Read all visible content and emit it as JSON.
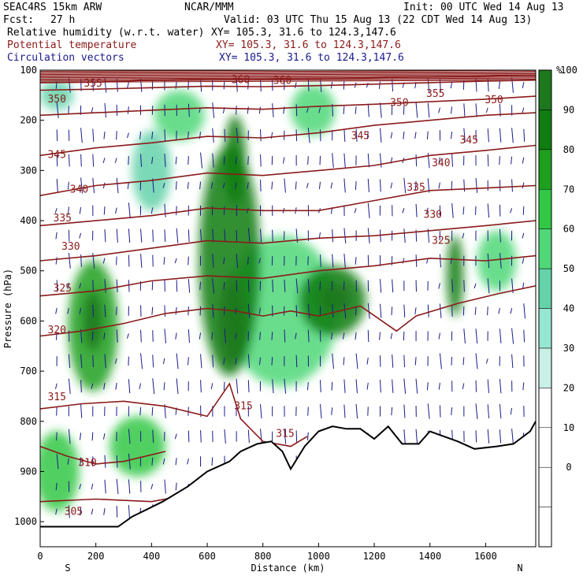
{
  "header": {
    "model": "SEAC4RS 15km ARW",
    "center": "NCAR/MMM",
    "init": "Init: 00 UTC Wed 14 Aug 13",
    "fcst_label": "Fcst:",
    "fcst_value": "27 h",
    "valid": "Valid: 03 UTC Thu 15 Aug 13 (22 CDT Wed 14 Aug 13)",
    "field1": "Relative humidity (w.r.t. water)",
    "field1_xy": "XY= 105.3, 31.6 to 124.3,147.6",
    "field2": "Potential temperature",
    "field2_xy": "XY= 105.3, 31.6 to 124.3,147.6",
    "field3": "Circulation vectors",
    "field3_xy": "XY= 105.3, 31.6 to 124.3,147.6",
    "colors": {
      "field1": "#000000",
      "field2": "#8b1a1a",
      "field3": "#1a1a8b"
    }
  },
  "chart_data": {
    "type": "heatmap",
    "title": "",
    "xlabel": "Distance (km)",
    "ylabel": "Pressure (hPa)",
    "xlim": [
      0,
      1780
    ],
    "ylim": [
      1050,
      100
    ],
    "x_ticks": [
      0,
      200,
      400,
      600,
      800,
      1000,
      1200,
      1400,
      1600
    ],
    "y_ticks": [
      100,
      200,
      300,
      400,
      500,
      600,
      700,
      800,
      900,
      1000
    ],
    "x_end_labels": {
      "left": "S",
      "right": "N"
    },
    "colorbar": {
      "unit": "%",
      "ticks": [
        0,
        10,
        20,
        30,
        40,
        50,
        60,
        70,
        80,
        90,
        100
      ],
      "colors": [
        "#ffffff",
        "#ffffff",
        "#ffffff",
        "#ffffff",
        "#c8f0e6",
        "#96e6d2",
        "#64d2aa",
        "#50d778",
        "#32c846",
        "#1ea01e",
        "#0f7d0f",
        "#1e781e"
      ]
    },
    "rh_blobs": [
      {
        "x": 190,
        "p": 610,
        "rx": 90,
        "rp": 130,
        "v": 70
      },
      {
        "x": 190,
        "p": 600,
        "rx": 35,
        "rp": 60,
        "v": 90
      },
      {
        "x": 680,
        "p": 480,
        "rx": 110,
        "rp": 230,
        "v": 80
      },
      {
        "x": 690,
        "p": 600,
        "rx": 50,
        "rp": 90,
        "v": 95
      },
      {
        "x": 700,
        "p": 280,
        "rx": 40,
        "rp": 90,
        "v": 88
      },
      {
        "x": 1050,
        "p": 560,
        "rx": 120,
        "rp": 70,
        "v": 85
      },
      {
        "x": 1060,
        "p": 555,
        "rx": 60,
        "rp": 30,
        "v": 95
      },
      {
        "x": 1490,
        "p": 510,
        "rx": 30,
        "rp": 80,
        "v": 85
      },
      {
        "x": 1640,
        "p": 480,
        "rx": 70,
        "rp": 60,
        "v": 55
      },
      {
        "x": 400,
        "p": 300,
        "rx": 70,
        "rp": 80,
        "v": 45
      },
      {
        "x": 500,
        "p": 190,
        "rx": 90,
        "rp": 50,
        "v": 50
      },
      {
        "x": 980,
        "p": 180,
        "rx": 80,
        "rp": 50,
        "v": 55
      },
      {
        "x": 60,
        "p": 150,
        "rx": 60,
        "rp": 30,
        "v": 45
      },
      {
        "x": 350,
        "p": 850,
        "rx": 100,
        "rp": 60,
        "v": 60
      },
      {
        "x": 60,
        "p": 900,
        "rx": 80,
        "rp": 80,
        "v": 65
      },
      {
        "x": 870,
        "p": 580,
        "rx": 200,
        "rp": 150,
        "v": 55
      }
    ],
    "isentropes": [
      {
        "level": 305,
        "label": "305",
        "points": [
          [
            0,
            960
          ],
          [
            200,
            955
          ],
          [
            400,
            960
          ],
          [
            500,
            950
          ]
        ]
      },
      {
        "level": 310,
        "label": "310",
        "points": [
          [
            0,
            850
          ],
          [
            100,
            870
          ],
          [
            200,
            885
          ],
          [
            300,
            880
          ],
          [
            450,
            860
          ]
        ]
      },
      {
        "level": 315,
        "label": "315",
        "points": [
          [
            0,
            775
          ],
          [
            150,
            765
          ],
          [
            300,
            760
          ],
          [
            450,
            770
          ],
          [
            600,
            790
          ],
          [
            680,
            725
          ],
          [
            720,
            795
          ],
          [
            800,
            840
          ],
          [
            900,
            850
          ],
          [
            960,
            830
          ]
        ]
      },
      {
        "level": 320,
        "label": "320",
        "points": [
          [
            0,
            630
          ],
          [
            150,
            620
          ],
          [
            300,
            605
          ],
          [
            450,
            585
          ],
          [
            600,
            575
          ],
          [
            700,
            580
          ],
          [
            800,
            590
          ],
          [
            900,
            580
          ],
          [
            1000,
            590
          ],
          [
            1150,
            570
          ],
          [
            1280,
            620
          ],
          [
            1350,
            590
          ],
          [
            1500,
            565
          ],
          [
            1650,
            545
          ],
          [
            1780,
            530
          ]
        ]
      },
      {
        "level": 325,
        "label": "325",
        "points": [
          [
            0,
            550
          ],
          [
            200,
            540
          ],
          [
            400,
            520
          ],
          [
            600,
            510
          ],
          [
            800,
            515
          ],
          [
            1000,
            500
          ],
          [
            1200,
            490
          ],
          [
            1400,
            475
          ],
          [
            1600,
            480
          ],
          [
            1780,
            470
          ]
        ]
      },
      {
        "level": 330,
        "label": "330",
        "points": [
          [
            0,
            480
          ],
          [
            200,
            470
          ],
          [
            400,
            455
          ],
          [
            600,
            440
          ],
          [
            800,
            445
          ],
          [
            1000,
            435
          ],
          [
            1200,
            430
          ],
          [
            1400,
            420
          ],
          [
            1600,
            410
          ],
          [
            1780,
            400
          ]
        ]
      },
      {
        "level": 335,
        "label": "335",
        "points": [
          [
            0,
            410
          ],
          [
            200,
            400
          ],
          [
            400,
            390
          ],
          [
            600,
            375
          ],
          [
            800,
            380
          ],
          [
            1000,
            380
          ],
          [
            1200,
            360
          ],
          [
            1400,
            340
          ],
          [
            1600,
            335
          ],
          [
            1780,
            330
          ]
        ]
      },
      {
        "level": 340,
        "label": "340",
        "points": [
          [
            0,
            350
          ],
          [
            200,
            330
          ],
          [
            400,
            320
          ],
          [
            600,
            305
          ],
          [
            800,
            310
          ],
          [
            1000,
            300
          ],
          [
            1200,
            290
          ],
          [
            1400,
            270
          ],
          [
            1600,
            260
          ],
          [
            1780,
            250
          ]
        ]
      },
      {
        "level": 345,
        "label": "345",
        "points": [
          [
            0,
            270
          ],
          [
            200,
            255
          ],
          [
            400,
            245
          ],
          [
            600,
            232
          ],
          [
            800,
            235
          ],
          [
            1000,
            225
          ],
          [
            1200,
            210
          ],
          [
            1400,
            200
          ],
          [
            1600,
            190
          ],
          [
            1780,
            185
          ]
        ]
      },
      {
        "level": 350,
        "label": "350",
        "points": [
          [
            0,
            190
          ],
          [
            200,
            185
          ],
          [
            400,
            180
          ],
          [
            600,
            175
          ],
          [
            800,
            178
          ],
          [
            1000,
            172
          ],
          [
            1200,
            168
          ],
          [
            1400,
            163
          ],
          [
            1600,
            158
          ],
          [
            1780,
            152
          ]
        ]
      },
      {
        "level": 355,
        "label": "355",
        "points": [
          [
            0,
            140
          ],
          [
            200,
            138
          ],
          [
            400,
            135
          ],
          [
            600,
            132
          ],
          [
            800,
            133
          ],
          [
            1000,
            131
          ],
          [
            1200,
            128
          ],
          [
            1400,
            125
          ],
          [
            1600,
            122
          ],
          [
            1780,
            120
          ]
        ]
      },
      {
        "level": 360,
        "label": "360",
        "points": [
          [
            0,
            125
          ],
          [
            200,
            124
          ],
          [
            400,
            120
          ],
          [
            600,
            118
          ],
          [
            800,
            118
          ],
          [
            1000,
            117
          ],
          [
            1200,
            115
          ],
          [
            1400,
            113
          ],
          [
            1600,
            112
          ],
          [
            1780,
            110
          ]
        ]
      }
    ],
    "contour_labels": [
      {
        "text": "355",
        "x": 190,
        "p": 127
      },
      {
        "text": "360",
        "x": 720,
        "p": 120
      },
      {
        "text": "360",
        "x": 870,
        "p": 121
      },
      {
        "text": "355",
        "x": 1420,
        "p": 147
      },
      {
        "text": "350",
        "x": 1630,
        "p": 160
      },
      {
        "text": "350",
        "x": 1290,
        "p": 165
      },
      {
        "text": "350",
        "x": 60,
        "p": 158
      },
      {
        "text": "345",
        "x": 1540,
        "p": 240
      },
      {
        "text": "345",
        "x": 1150,
        "p": 231
      },
      {
        "text": "345",
        "x": 60,
        "p": 269
      },
      {
        "text": "340",
        "x": 1440,
        "p": 285
      },
      {
        "text": "335",
        "x": 1350,
        "p": 334
      },
      {
        "text": "340",
        "x": 140,
        "p": 338
      },
      {
        "text": "330",
        "x": 1410,
        "p": 388
      },
      {
        "text": "335",
        "x": 80,
        "p": 395
      },
      {
        "text": "325",
        "x": 1440,
        "p": 440
      },
      {
        "text": "330",
        "x": 110,
        "p": 452
      },
      {
        "text": "325",
        "x": 80,
        "p": 535
      },
      {
        "text": "320",
        "x": 60,
        "p": 618
      },
      {
        "text": "315",
        "x": 60,
        "p": 752
      },
      {
        "text": "315",
        "x": 730,
        "p": 770
      },
      {
        "text": "315",
        "x": 880,
        "p": 825
      },
      {
        "text": "310",
        "x": 170,
        "p": 883
      },
      {
        "text": "305",
        "x": 120,
        "p": 980
      }
    ],
    "terrain_surface": [
      [
        0,
        1010
      ],
      [
        280,
        1010
      ],
      [
        330,
        990
      ],
      [
        440,
        960
      ],
      [
        530,
        930
      ],
      [
        600,
        900
      ],
      [
        680,
        880
      ],
      [
        720,
        860
      ],
      [
        780,
        845
      ],
      [
        830,
        840
      ],
      [
        870,
        860
      ],
      [
        900,
        895
      ],
      [
        950,
        850
      ],
      [
        1000,
        820
      ],
      [
        1050,
        810
      ],
      [
        1100,
        815
      ],
      [
        1150,
        815
      ],
      [
        1200,
        835
      ],
      [
        1250,
        810
      ],
      [
        1300,
        845
      ],
      [
        1360,
        845
      ],
      [
        1400,
        820
      ],
      [
        1450,
        830
      ],
      [
        1500,
        840
      ],
      [
        1560,
        855
      ],
      [
        1640,
        850
      ],
      [
        1700,
        845
      ],
      [
        1760,
        820
      ],
      [
        1780,
        800
      ]
    ]
  }
}
